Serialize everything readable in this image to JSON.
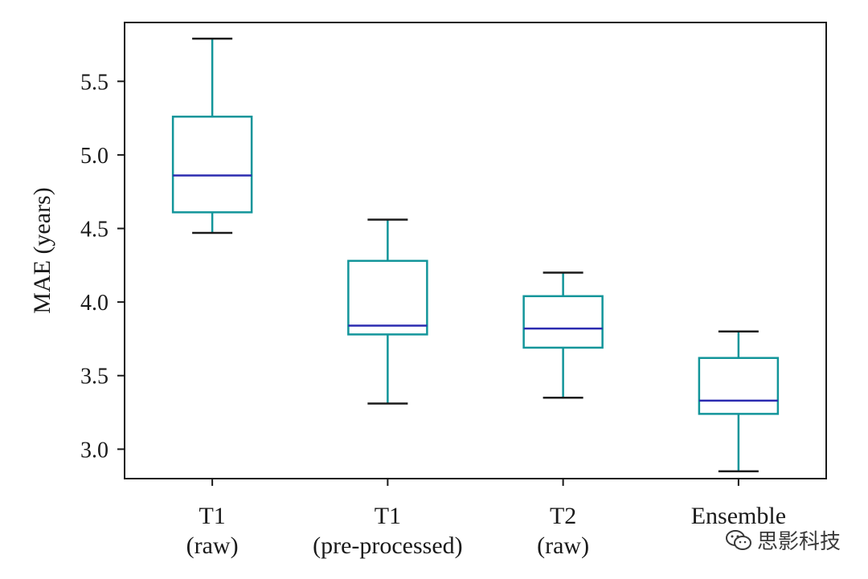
{
  "chart_data": {
    "type": "box",
    "title": "",
    "xlabel": "",
    "ylabel": "MAE (years)",
    "ylim": [
      2.8,
      5.9
    ],
    "yticks": [
      "3.0",
      "3.5",
      "4.0",
      "4.5",
      "5.0",
      "5.5"
    ],
    "categories": [
      {
        "line1": "T1",
        "line2": "(raw)"
      },
      {
        "line1": "T1",
        "line2": "(pre-processed)"
      },
      {
        "line1": "T2",
        "line2": "(raw)"
      },
      {
        "line1": "Ensemble",
        "line2": ""
      }
    ],
    "boxes": [
      {
        "whisker_low": 4.47,
        "q1": 4.61,
        "median": 4.86,
        "q3": 5.26,
        "whisker_high": 5.79
      },
      {
        "whisker_low": 3.31,
        "q1": 3.78,
        "median": 3.84,
        "q3": 4.28,
        "whisker_high": 4.56
      },
      {
        "whisker_low": 3.35,
        "q1": 3.69,
        "median": 3.82,
        "q3": 4.04,
        "whisker_high": 4.2
      },
      {
        "whisker_low": 2.85,
        "q1": 3.24,
        "median": 3.33,
        "q3": 3.62,
        "whisker_high": 3.8
      }
    ],
    "colors": {
      "box": "#12959a",
      "median": "#2b2bb0",
      "cap": "#1a1a1a",
      "frame": "#1a1a1a"
    }
  },
  "watermark": {
    "text": "思影科技",
    "icon": "wechat-icon"
  }
}
